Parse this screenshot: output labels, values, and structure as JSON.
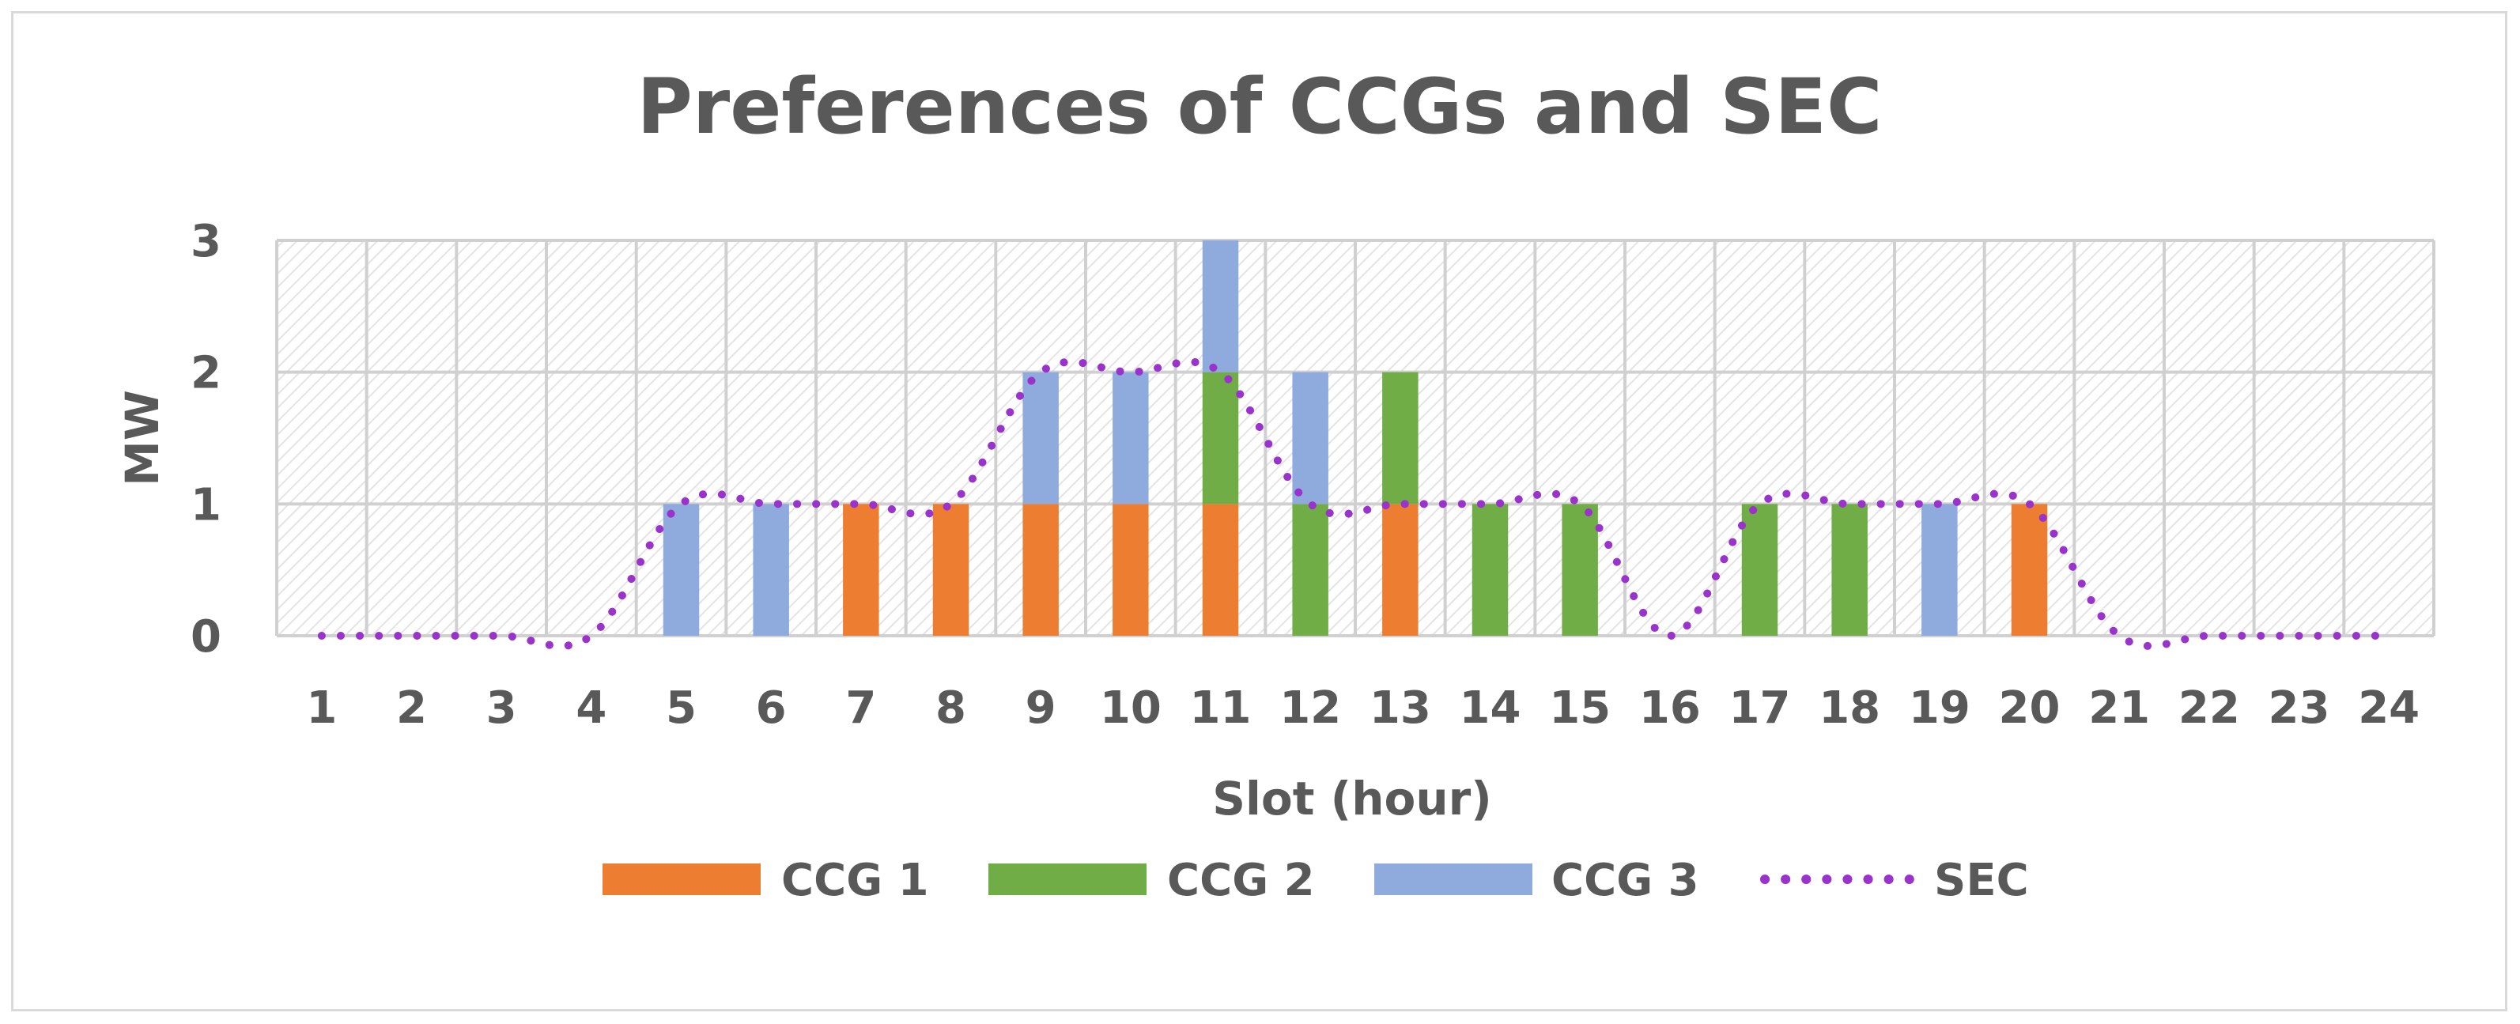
{
  "chart_data": {
    "type": "bar",
    "stacked": true,
    "title": "Preferences of CCGs and SEC",
    "xlabel": "Slot (hour)",
    "ylabel": "MW",
    "ylim": [
      0,
      3
    ],
    "yticks": [
      0,
      1,
      2,
      3
    ],
    "categories": [
      "1",
      "2",
      "3",
      "4",
      "5",
      "6",
      "7",
      "8",
      "9",
      "10",
      "11",
      "12",
      "13",
      "14",
      "15",
      "16",
      "17",
      "18",
      "19",
      "20",
      "21",
      "22",
      "23",
      "24"
    ],
    "grid": true,
    "legend_position": "bottom",
    "series": [
      {
        "name": "CCG 1",
        "kind": "bar",
        "color": "#ed7d31",
        "values": [
          0,
          0,
          0,
          0,
          0,
          0,
          1,
          1,
          1,
          1,
          1,
          0,
          1,
          0,
          0,
          0,
          0,
          0,
          0,
          1,
          0,
          0,
          0,
          0
        ]
      },
      {
        "name": "CCG 2",
        "kind": "bar",
        "color": "#70ad47",
        "values": [
          0,
          0,
          0,
          0,
          0,
          0,
          0,
          0,
          0,
          0,
          1,
          1,
          1,
          1,
          1,
          0,
          1,
          1,
          0,
          0,
          0,
          0,
          0,
          0
        ]
      },
      {
        "name": "CCG 3",
        "kind": "bar",
        "color": "#8faadc",
        "values": [
          0,
          0,
          0,
          0,
          1,
          1,
          0,
          0,
          1,
          1,
          1,
          1,
          0,
          0,
          0,
          0,
          0,
          0,
          1,
          0,
          0,
          0,
          0,
          0
        ]
      },
      {
        "name": "SEC",
        "kind": "line",
        "style": "dotted",
        "color": "#9933cc",
        "values": [
          0,
          0,
          0,
          0,
          1,
          1,
          1,
          1,
          2,
          2,
          2,
          1,
          1,
          1,
          1,
          0,
          1,
          1,
          1,
          1,
          0,
          0,
          0,
          0
        ]
      }
    ]
  }
}
